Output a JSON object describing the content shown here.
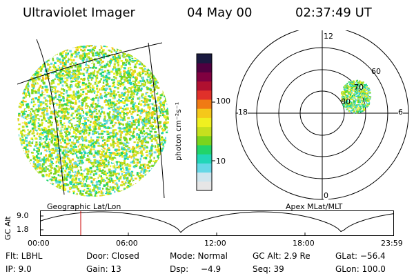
{
  "header": {
    "instrument": "Ultraviolet Imager",
    "date": "04 May 00",
    "time": "02:37:49 UT"
  },
  "colorbar": {
    "unit_label": "photon cm⁻²s⁻¹",
    "tick_100": "100",
    "tick_10": "10",
    "colors": [
      "#e6e6e6",
      "#cfe6ee",
      "#66d8e6",
      "#22d6b8",
      "#22d46a",
      "#7ad41e",
      "#c6e01e",
      "#f0f020",
      "#f5c81a",
      "#f07a14",
      "#e0302a",
      "#b01030",
      "#800040",
      "#500040",
      "#1a1a40"
    ]
  },
  "left_map": {
    "caption": "Geographic Lat/Lon"
  },
  "polar_plot": {
    "caption": "Apex MLat/MLT",
    "mlt_labels": {
      "top": "12",
      "left": "18",
      "right": "6",
      "bottom": "0"
    },
    "lat_labels": [
      "60",
      "70",
      "80"
    ]
  },
  "altitude_plot": {
    "ylabel": "GC Alt",
    "yticks": [
      "9.0",
      "1.8"
    ],
    "xticks": [
      "00:00",
      "06:00",
      "12:00",
      "18:00",
      "23:59"
    ],
    "marker_color": "#cc0000"
  },
  "info": {
    "flt": "Flt: LBHL",
    "door": "Door: Closed",
    "mode": "Mode: Normal",
    "gc_alt": "GC Alt: 2.9 Re",
    "glat": "GLat: −56.4",
    "ip": "IP:  9.0",
    "gain": "Gain: 13",
    "dsp_label": "Dsp:",
    "dsp_value": "−4.9",
    "seq": "Seq: 39",
    "glon": "GLon: 100.0"
  }
}
